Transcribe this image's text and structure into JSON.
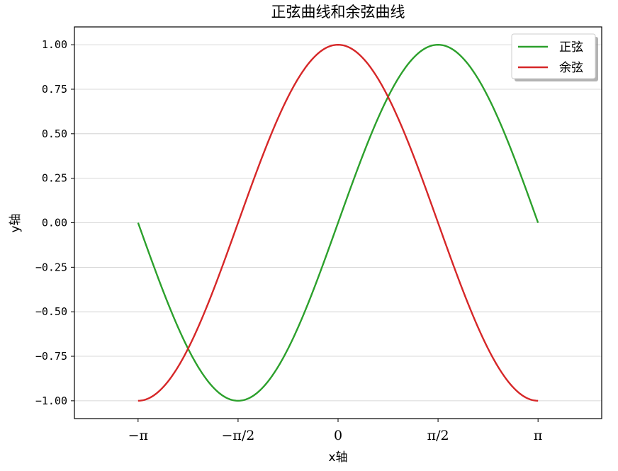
{
  "chart_data": {
    "type": "line",
    "title": "正弦曲线和余弦曲线",
    "xlabel": "x轴",
    "ylabel": "y轴",
    "xlim": [
      -4.1416,
      4.1416
    ],
    "ylim": [
      -1.1,
      1.1
    ],
    "grid": "y-only",
    "legend_position": "top-right",
    "x_ticks": [
      {
        "value": -3.14159,
        "label": "−π"
      },
      {
        "value": -1.5708,
        "label": "−π/2"
      },
      {
        "value": 0,
        "label": "0"
      },
      {
        "value": 1.5708,
        "label": "π/2"
      },
      {
        "value": 3.14159,
        "label": "π"
      }
    ],
    "y_ticks": [
      {
        "value": 1.0,
        "label": "1.00"
      },
      {
        "value": 0.75,
        "label": "0.75"
      },
      {
        "value": 0.5,
        "label": "0.50"
      },
      {
        "value": 0.25,
        "label": "0.25"
      },
      {
        "value": 0.0,
        "label": "0.00"
      },
      {
        "value": -0.25,
        "label": "−0.25"
      },
      {
        "value": -0.5,
        "label": "−0.50"
      },
      {
        "value": -0.75,
        "label": "−0.75"
      },
      {
        "value": -1.0,
        "label": "−1.00"
      }
    ],
    "x_range": [
      -3.14159,
      3.14159
    ],
    "series": [
      {
        "name": "正弦",
        "color": "#2ca02c",
        "x": [
          -3.1416,
          -2.7489,
          -2.3562,
          -1.9635,
          -1.5708,
          -1.1781,
          -0.7854,
          -0.3927,
          0,
          0.3927,
          0.7854,
          1.1781,
          1.5708,
          1.9635,
          2.3562,
          2.7489,
          3.1416
        ],
        "values": [
          0,
          -0.3827,
          -0.7071,
          -0.9239,
          -1,
          -0.9239,
          -0.7071,
          -0.3827,
          0,
          0.3827,
          0.7071,
          0.9239,
          1,
          0.9239,
          0.7071,
          0.3827,
          0
        ]
      },
      {
        "name": "余弦",
        "color": "#d62728",
        "x": [
          -3.1416,
          -2.7489,
          -2.3562,
          -1.9635,
          -1.5708,
          -1.1781,
          -0.7854,
          -0.3927,
          0,
          0.3927,
          0.7854,
          1.1781,
          1.5708,
          1.9635,
          2.3562,
          2.7489,
          3.1416
        ],
        "values": [
          -1,
          -0.9239,
          -0.7071,
          -0.3827,
          0,
          0.3827,
          0.7071,
          0.9239,
          1,
          0.9239,
          0.7071,
          0.3827,
          0,
          -0.3827,
          -0.7071,
          -0.9239,
          -1
        ]
      }
    ]
  }
}
